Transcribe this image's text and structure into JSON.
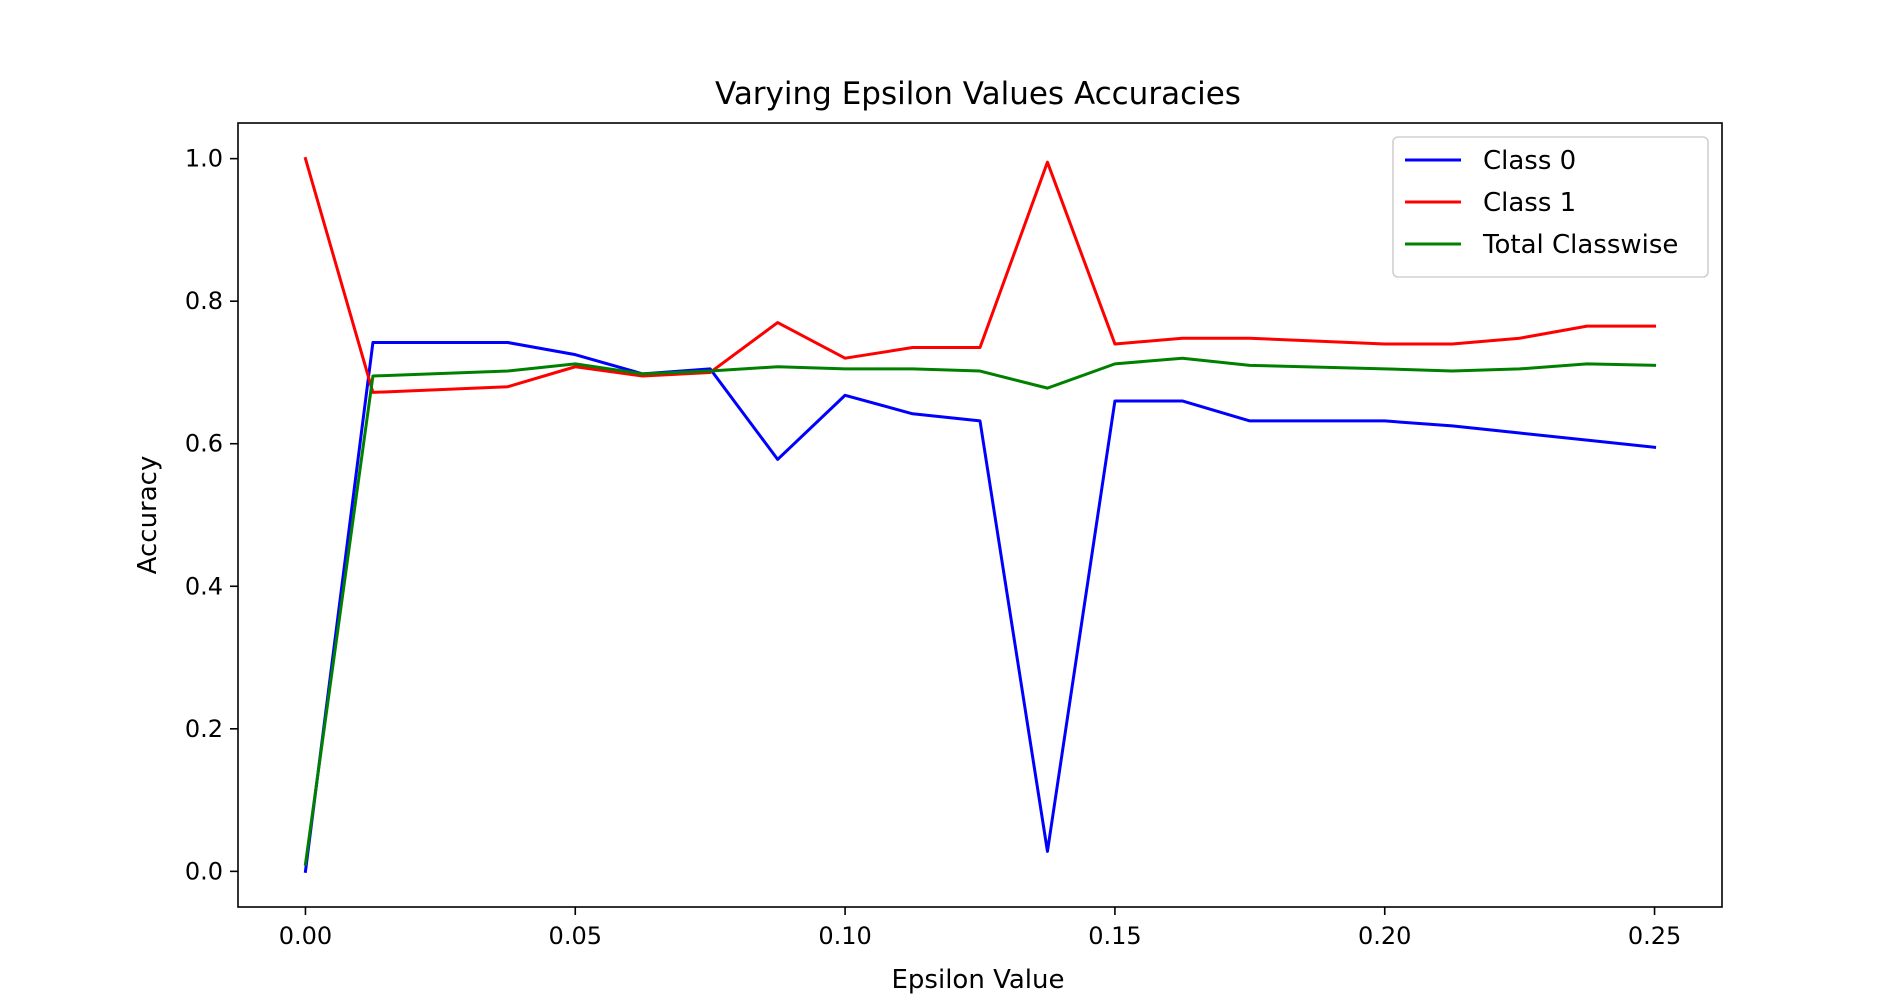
{
  "chart_data": {
    "type": "line",
    "title": "Varying Epsilon Values Accuracies",
    "xlabel": "Epsilon Value",
    "ylabel": "Accuracy",
    "xlim": [
      -0.0125,
      0.2625
    ],
    "ylim": [
      -0.05,
      1.05
    ],
    "xticks": [
      0.0,
      0.05,
      0.1,
      0.15,
      0.2,
      0.25
    ],
    "xtick_labels": [
      "0.00",
      "0.05",
      "0.10",
      "0.15",
      "0.20",
      "0.25"
    ],
    "yticks": [
      0.0,
      0.2,
      0.4,
      0.6,
      0.8,
      1.0
    ],
    "ytick_labels": [
      "0.0",
      "0.2",
      "0.4",
      "0.6",
      "0.8",
      "1.0"
    ],
    "grid": false,
    "legend_position": "top-right",
    "x": [
      0.0,
      0.0125,
      0.0375,
      0.05,
      0.0625,
      0.075,
      0.0875,
      0.1,
      0.1125,
      0.125,
      0.1375,
      0.15,
      0.1625,
      0.175,
      0.2,
      0.2125,
      0.225,
      0.2375,
      0.25
    ],
    "series": [
      {
        "name": "Class 0",
        "color": "#0000ff",
        "values": [
          0.0,
          0.742,
          0.742,
          0.725,
          0.698,
          0.705,
          0.578,
          0.668,
          0.642,
          0.632,
          0.028,
          0.66,
          0.66,
          0.632,
          0.632,
          0.625,
          0.615,
          0.605,
          0.595
        ]
      },
      {
        "name": "Class 1",
        "color": "#ff0000",
        "values": [
          1.0,
          0.672,
          0.68,
          0.708,
          0.695,
          0.7,
          0.77,
          0.72,
          0.735,
          0.735,
          0.995,
          0.74,
          0.748,
          0.748,
          0.74,
          0.74,
          0.748,
          0.765,
          0.765
        ]
      },
      {
        "name": "Total Classwise",
        "color": "#008000",
        "values": [
          0.01,
          0.695,
          0.702,
          0.712,
          0.698,
          0.702,
          0.708,
          0.705,
          0.705,
          0.702,
          0.678,
          0.712,
          0.72,
          0.71,
          0.705,
          0.702,
          0.705,
          0.712,
          0.71
        ]
      }
    ]
  }
}
